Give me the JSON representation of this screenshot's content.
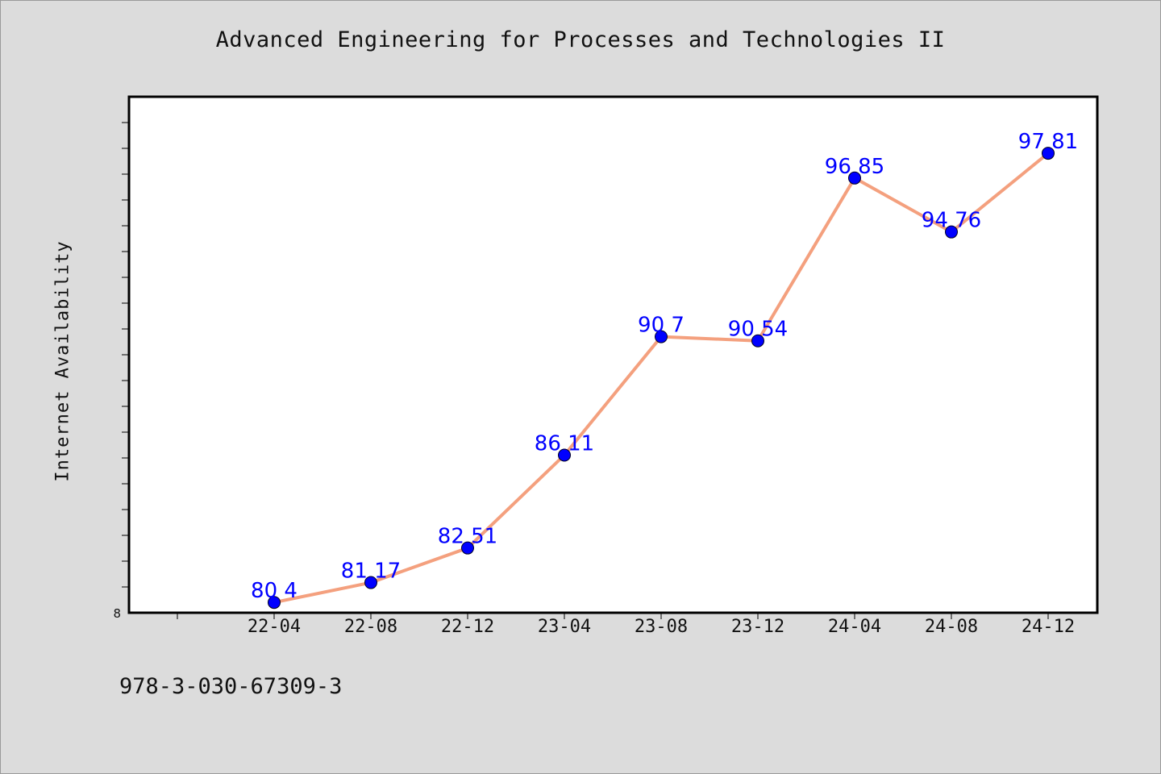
{
  "chart_data": {
    "type": "line",
    "title": "Advanced Engineering for Processes and Technologies II",
    "ylabel": "Internet Availability",
    "xlabel": "",
    "categories": [
      "22-04",
      "22-08",
      "22-12",
      "23-04",
      "23-08",
      "23-12",
      "24-04",
      "24-08",
      "24-12"
    ],
    "series": [
      {
        "values": [
          80.4,
          81.17,
          82.51,
          86.11,
          90.7,
          90.54,
          96.85,
          94.76,
          97.81
        ]
      }
    ],
    "y_tick_labels": [
      "8"
    ],
    "ylim": [
      80,
      100
    ],
    "grid": false,
    "line_color": "#f4a07e",
    "marker_color": "#0000ff",
    "data_label_color": "#0000ff"
  },
  "footer": {
    "isbn": "978-3-030-67309-3"
  }
}
